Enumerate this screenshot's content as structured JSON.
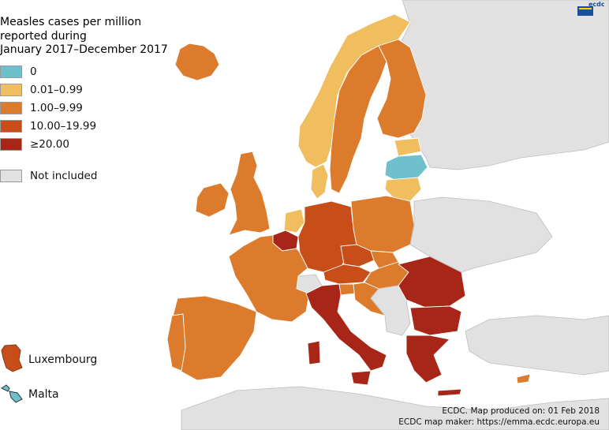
{
  "legend": {
    "title": "Measles cases per million\nreported during\nJanuary 2017–December 2017",
    "items": [
      {
        "label": "0",
        "color": "#6ec0cc"
      },
      {
        "label": "0.01–0.99",
        "color": "#f0bd5f"
      },
      {
        "label": "1.00–9.99",
        "color": "#dd7b2c"
      },
      {
        "label": "10.00–19.99",
        "color": "#c84e19"
      },
      {
        "label": "≥20.00",
        "color": "#a82618"
      },
      {
        "label": "Not included",
        "color": "#e1e1e1"
      }
    ]
  },
  "insets": {
    "luxembourg": "Luxembourg",
    "malta": "Malta"
  },
  "credits": {
    "line1": "ECDC. Map produced on: 01 Feb 2018",
    "line2": "ECDC map maker: https://emma.ecdc.europa.eu"
  },
  "logo_text": "ecdc"
}
